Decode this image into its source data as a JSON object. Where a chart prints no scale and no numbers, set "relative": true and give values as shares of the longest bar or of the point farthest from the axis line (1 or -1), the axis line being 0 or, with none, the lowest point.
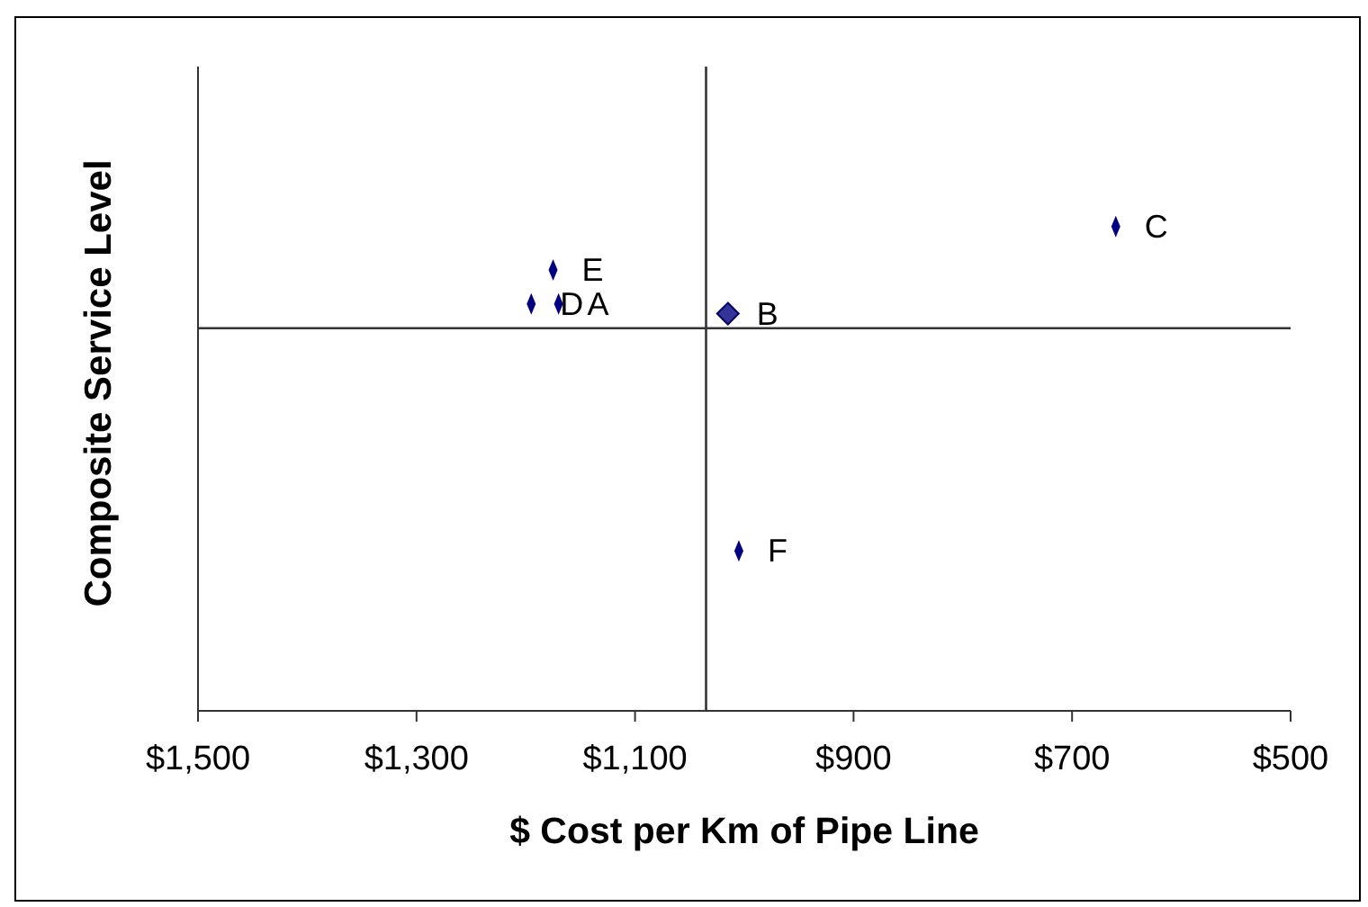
{
  "chart_data": {
    "type": "scatter",
    "xlabel": "$ Cost per Km of Pipe Line",
    "ylabel": "Composite Service Level",
    "relative": true,
    "xlim": [
      1500,
      500
    ],
    "xticks": [
      {
        "value": 1500,
        "label": "$1,500"
      },
      {
        "value": 1300,
        "label": "$1,300"
      },
      {
        "value": 1100,
        "label": "$1,100"
      },
      {
        "value": 900,
        "label": "$900"
      },
      {
        "value": 700,
        "label": "$700"
      },
      {
        "value": 500,
        "label": "$500"
      }
    ],
    "series": [
      {
        "color": "#000080",
        "x": [
          1170,
          660,
          1195,
          1175,
          1005
        ],
        "values": [
          0.84,
          1,
          0.84,
          0.91,
          0.33
        ]
      },
      {
        "color": "#333399",
        "marker": "diamond",
        "x": [
          1015
        ],
        "values": [
          0.82
        ]
      }
    ],
    "annotations": [
      {
        "text": "A",
        "x": 1170,
        "y": 0.84
      },
      {
        "text": "B",
        "x": 1015,
        "y": 0.82
      },
      {
        "text": "C",
        "x": 660,
        "y": 1
      },
      {
        "text": "D",
        "x": 1195,
        "y": 0.84
      },
      {
        "text": "E",
        "x": 1175,
        "y": 0.91
      },
      {
        "text": "F",
        "x": 1005,
        "y": 0.33
      }
    ],
    "ref_lines": [
      {
        "axis": "x",
        "value": 1035,
        "color": "#333333"
      },
      {
        "axis": "y",
        "value": 0.79,
        "color": "#333333"
      }
    ]
  }
}
